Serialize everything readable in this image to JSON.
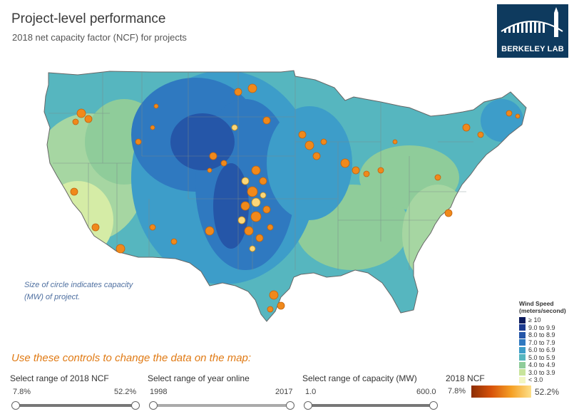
{
  "header": {
    "title": "Project-level performance",
    "subtitle": "2018 net capacity factor (NCF) for projects",
    "logo_text": "BERKELEY LAB"
  },
  "map": {
    "note": "Size of circle indicates capacity (MW) of project.",
    "marker_color": "#f0891b",
    "legend": {
      "title_line1": "Wind Speed",
      "title_line2": "(meters/second)",
      "items": [
        {
          "label": "≥ 10",
          "color": "#0b1a5c"
        },
        {
          "label": "9.0 to 9.9",
          "color": "#1b3a8f"
        },
        {
          "label": "8.0 to 8.9",
          "color": "#2556a8"
        },
        {
          "label": "7.0 to 7.9",
          "color": "#2f79c0"
        },
        {
          "label": "6.0 to 6.9",
          "color": "#3d9dc9"
        },
        {
          "label": "5.0 to 5.9",
          "color": "#56b6bf"
        },
        {
          "label": "4.0 to 4.9",
          "color": "#8fcc9a"
        },
        {
          "label": "3.0 to 3.9",
          "color": "#c8e49c"
        },
        {
          "label": "< 3.0",
          "color": "#f2f6c2"
        }
      ]
    }
  },
  "controls": {
    "heading": "Use these controls to change the data on the map:",
    "ncf_range": {
      "label": "Select range of 2018 NCF",
      "min": "7.8%",
      "max": "52.2%"
    },
    "year_range": {
      "label": "Select range of year online",
      "min": "1998",
      "max": "2017"
    },
    "capacity_range": {
      "label": "Select range of capacity (MW)",
      "min": "1.0",
      "max": "600.0"
    },
    "ncf_legend": {
      "label": "2018 NCF",
      "min": "7.8%",
      "max": "52.2%"
    }
  }
}
